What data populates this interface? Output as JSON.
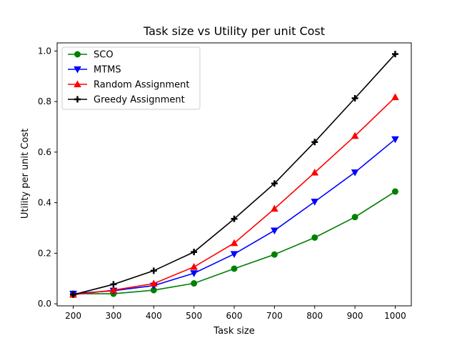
{
  "chart_data": {
    "type": "line",
    "title": "Task size vs Utility per unit Cost",
    "xlabel": "Task size",
    "ylabel": "Utility per unit Cost",
    "x": [
      200,
      300,
      400,
      500,
      600,
      700,
      800,
      900,
      1000
    ],
    "xlim": [
      160,
      1040
    ],
    "ylim": [
      -0.008,
      1.032
    ],
    "xticks": [
      200,
      300,
      400,
      500,
      600,
      700,
      800,
      900,
      1000
    ],
    "yticks": [
      0.0,
      0.2,
      0.4,
      0.6,
      0.8,
      1.0
    ],
    "ytick_labels": [
      "0.0",
      "0.2",
      "0.4",
      "0.6",
      "0.8",
      "1.0"
    ],
    "grid": false,
    "legend_position": "top-left",
    "series": [
      {
        "name": "SCO",
        "color": "#008000",
        "marker": "circle",
        "values": [
          0.04,
          0.04,
          0.054,
          0.081,
          0.139,
          0.195,
          0.262,
          0.343,
          0.444
        ]
      },
      {
        "name": "MTMS",
        "color": "#0000ff",
        "marker": "triangle-down",
        "values": [
          0.04,
          0.052,
          0.072,
          0.121,
          0.197,
          0.29,
          0.404,
          0.52,
          0.651
        ]
      },
      {
        "name": "Random Assignment",
        "color": "#ff0000",
        "marker": "triangle-up",
        "values": [
          0.036,
          0.054,
          0.08,
          0.146,
          0.24,
          0.376,
          0.519,
          0.664,
          0.817
        ]
      },
      {
        "name": "Greedy Assignment",
        "color": "#000000",
        "marker": "plus",
        "values": [
          0.036,
          0.077,
          0.131,
          0.205,
          0.336,
          0.476,
          0.64,
          0.813,
          0.988
        ]
      }
    ]
  }
}
